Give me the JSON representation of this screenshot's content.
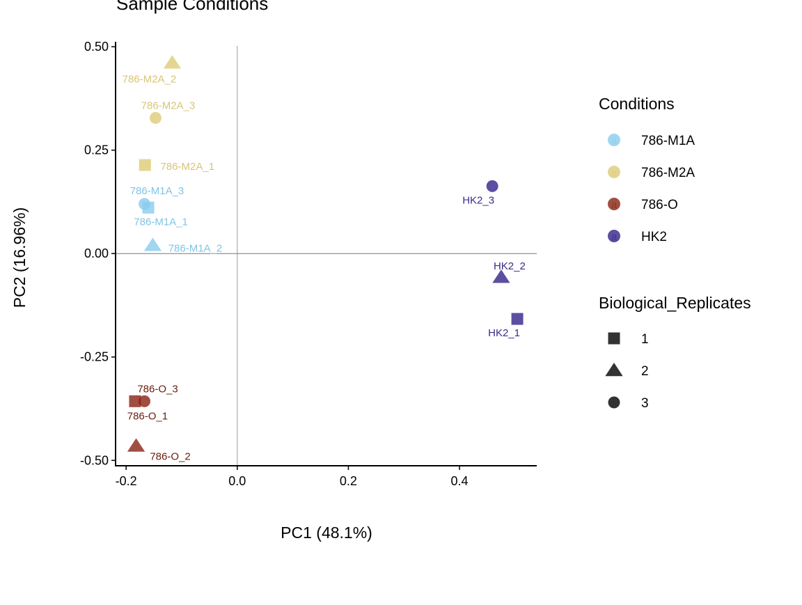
{
  "chart_data": {
    "type": "scatter",
    "title": "Sample Conditions",
    "xlabel": "PC1 (48.1%)",
    "ylabel": "PC2 (16.96%)",
    "xlim": [
      -0.219,
      0.539
    ],
    "ylim": [
      -0.513,
      0.512
    ],
    "xticks": [
      -0.2,
      0.0,
      0.2,
      0.4
    ],
    "xtick_labels": [
      "-0.2",
      "0.0",
      "0.2",
      "0.4"
    ],
    "yticks": [
      0.5,
      0.25,
      0.0,
      -0.25,
      -0.5
    ],
    "ytick_labels": [
      "0.50",
      "0.25",
      "0.00",
      "-0.25",
      "-0.50"
    ],
    "grid": false,
    "reference_lines": {
      "x": 0,
      "y": 0
    },
    "colors": {
      "786-M1A": "#88CCEE",
      "786-M2A": "#DDCC77",
      "786-O": "#882211",
      "HK2": "#332288"
    },
    "legend_placement": "right",
    "legends": [
      {
        "title": "Conditions",
        "entries": [
          "786-M1A",
          "786-M2A",
          "786-O",
          "HK2"
        ]
      },
      {
        "title": "Biological_Replicates",
        "entries": [
          "1",
          "2",
          "3"
        ],
        "shapes": [
          "square",
          "triangle",
          "circle"
        ]
      }
    ],
    "points": [
      {
        "label": "786-M2A_2",
        "condition": "786-M2A",
        "replicate": "2",
        "x": -0.117,
        "y": 0.461
      },
      {
        "label": "786-M2A_3",
        "condition": "786-M2A",
        "replicate": "3",
        "x": -0.147,
        "y": 0.328
      },
      {
        "label": "786-M2A_1",
        "condition": "786-M2A",
        "replicate": "1",
        "x": -0.166,
        "y": 0.214
      },
      {
        "label": "786-M1A_3",
        "condition": "786-M1A",
        "replicate": "3",
        "x": -0.167,
        "y": 0.12
      },
      {
        "label": "786-M1A_1",
        "condition": "786-M1A",
        "replicate": "1",
        "x": -0.16,
        "y": 0.111
      },
      {
        "label": "786-M1A_2",
        "condition": "786-M1A",
        "replicate": "2",
        "x": -0.152,
        "y": 0.02
      },
      {
        "label": "HK2_3",
        "condition": "HK2",
        "replicate": "3",
        "x": 0.459,
        "y": 0.163
      },
      {
        "label": "HK2_2",
        "condition": "HK2",
        "replicate": "2",
        "x": 0.475,
        "y": -0.057
      },
      {
        "label": "HK2_1",
        "condition": "HK2",
        "replicate": "1",
        "x": 0.504,
        "y": -0.158
      },
      {
        "label": "786-O_3",
        "condition": "786-O",
        "replicate": "3",
        "x": -0.167,
        "y": -0.357
      },
      {
        "label": "786-O_1",
        "condition": "786-O",
        "replicate": "1",
        "x": -0.184,
        "y": -0.357
      },
      {
        "label": "786-O_2",
        "condition": "786-O",
        "replicate": "2",
        "x": -0.182,
        "y": -0.465
      }
    ]
  }
}
